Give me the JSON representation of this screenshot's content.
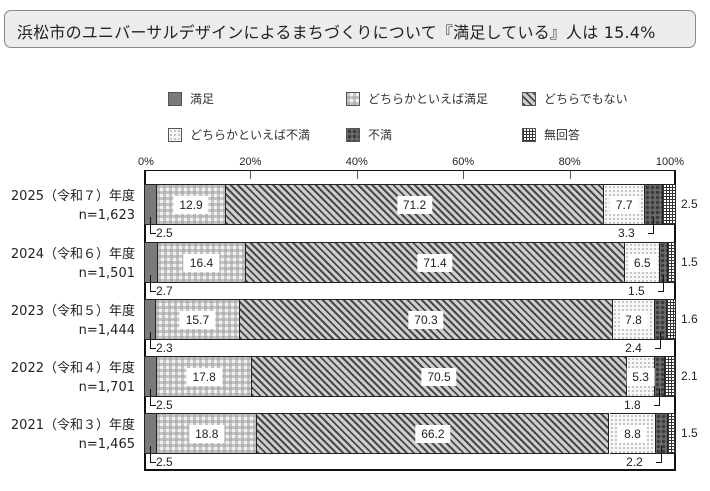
{
  "title": "浜松市のユニバーサルデザインによるまちづくりについて『満足している』人は 15.4%",
  "legend": [
    {
      "label": "満足",
      "pattern": "manzoku"
    },
    {
      "label": "どちらかといえば満足",
      "pattern": "dochira-manzoku"
    },
    {
      "label": "どちらでもない",
      "pattern": "neutral"
    },
    {
      "label": "どちらかといえば不満",
      "pattern": "dochira-fuman"
    },
    {
      "label": "不満",
      "pattern": "fuman"
    },
    {
      "label": "無回答",
      "pattern": "noanswer"
    }
  ],
  "axis": {
    "ticks": [
      "0%",
      "20%",
      "40%",
      "60%",
      "80%",
      "100%"
    ]
  },
  "rows": [
    {
      "year": "2025（令和７）年度",
      "n": "n=1,623",
      "values": [
        "2.5",
        "12.9",
        "71.2",
        "7.7",
        "3.3",
        "2.5"
      ]
    },
    {
      "year": "2024（令和６）年度",
      "n": "n=1,501",
      "values": [
        "2.7",
        "16.4",
        "71.4",
        "6.5",
        "1.5",
        "1.5"
      ]
    },
    {
      "year": "2023（令和５）年度",
      "n": "n=1,444",
      "values": [
        "2.3",
        "15.7",
        "70.3",
        "7.8",
        "2.4",
        "1.6"
      ]
    },
    {
      "year": "2022（令和４）年度",
      "n": "n=1,701",
      "values": [
        "2.5",
        "17.8",
        "70.5",
        "5.3",
        "1.8",
        "2.1"
      ]
    },
    {
      "year": "2021（令和３）年度",
      "n": "n=1,465",
      "values": [
        "2.5",
        "18.8",
        "66.2",
        "8.8",
        "2.2",
        "1.5"
      ]
    }
  ],
  "chart_data": {
    "type": "bar",
    "orientation": "horizontal",
    "stacked": true,
    "percent_stacked": true,
    "title": "浜松市のユニバーサルデザインによるまちづくりについて『満足している』人は 15.4%",
    "categories": [
      "2025（令和７）年度 n=1,623",
      "2024（令和６）年度 n=1,501",
      "2023（令和５）年度 n=1,444",
      "2022（令和４）年度 n=1,701",
      "2021（令和３）年度 n=1,465"
    ],
    "series": [
      {
        "name": "満足",
        "values": [
          2.5,
          2.7,
          2.3,
          2.5,
          2.5
        ]
      },
      {
        "name": "どちらかといえば満足",
        "values": [
          12.9,
          16.4,
          15.7,
          17.8,
          18.8
        ]
      },
      {
        "name": "どちらでもない",
        "values": [
          71.2,
          71.4,
          70.3,
          70.5,
          66.2
        ]
      },
      {
        "name": "どちらかといえば不満",
        "values": [
          7.7,
          6.5,
          7.8,
          5.3,
          8.8
        ]
      },
      {
        "name": "不満",
        "values": [
          3.3,
          1.5,
          2.4,
          1.8,
          2.2
        ]
      },
      {
        "name": "無回答",
        "values": [
          2.5,
          1.5,
          1.6,
          2.1,
          1.5
        ]
      }
    ],
    "xlabel": "",
    "ylabel": "",
    "xlim": [
      0,
      100
    ],
    "x_ticks": [
      "0%",
      "20%",
      "40%",
      "60%",
      "80%",
      "100%"
    ],
    "grid": false,
    "legend_position": "top"
  }
}
